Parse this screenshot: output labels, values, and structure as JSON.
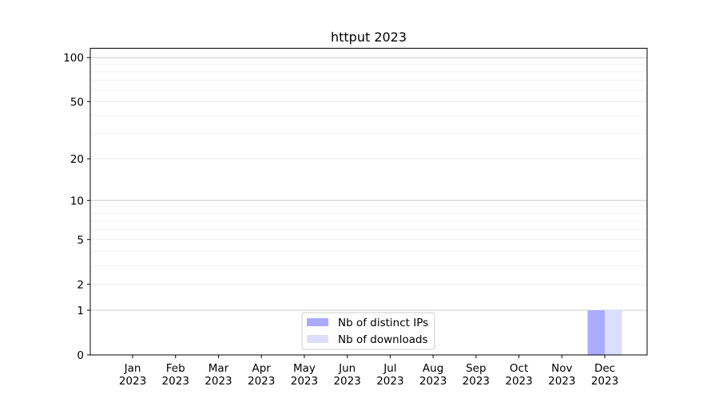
{
  "chart_data": {
    "type": "bar",
    "title": "httput 2023",
    "xlabel": "",
    "ylabel": "",
    "y_scale": "log(1+y)",
    "ylim": [
      0,
      116
    ],
    "yticks": [
      0,
      1,
      2,
      5,
      10,
      20,
      50,
      100
    ],
    "ytick_labels": [
      "0",
      "1",
      "2",
      "5",
      "10",
      "20",
      "50",
      "100"
    ],
    "grid": true,
    "legend_placement": "lower-center",
    "categories": [
      "Jan\n2023",
      "Feb\n2023",
      "Mar\n2023",
      "Apr\n2023",
      "May\n2023",
      "Jun\n2023",
      "Jul\n2023",
      "Aug\n2023",
      "Sep\n2023",
      "Oct\n2023",
      "Nov\n2023",
      "Dec\n2023"
    ],
    "series": [
      {
        "name": "Nb of distinct IPs",
        "color": "#aaaaff",
        "values": [
          0,
          0,
          0,
          0,
          0,
          0,
          0,
          0,
          0,
          0,
          0,
          1
        ]
      },
      {
        "name": "Nb of downloads",
        "color": "#ddddff",
        "values": [
          0,
          0,
          0,
          0,
          0,
          0,
          0,
          0,
          0,
          0,
          0,
          1
        ]
      }
    ]
  }
}
